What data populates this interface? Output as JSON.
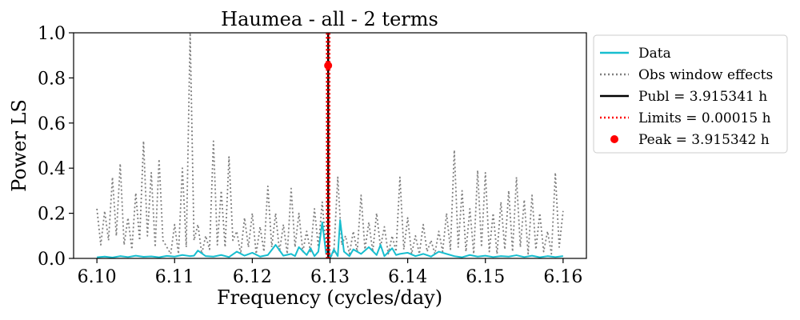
{
  "chart_data": {
    "type": "line",
    "title": "Haumea - all - 2 terms",
    "xlabel": "Frequency (cycles/day)",
    "ylabel": "Power LS",
    "xlim": [
      6.097,
      6.163
    ],
    "ylim": [
      0.0,
      1.0
    ],
    "xticks": [
      6.1,
      6.11,
      6.12,
      6.13,
      6.14,
      6.15,
      6.16
    ],
    "xtick_labels": [
      "6.10",
      "6.11",
      "6.12",
      "6.13",
      "6.14",
      "6.15",
      "6.16"
    ],
    "yticks": [
      0.0,
      0.2,
      0.4,
      0.6,
      0.8,
      1.0
    ],
    "ytick_labels": [
      "0.0",
      "0.2",
      "0.4",
      "0.6",
      "0.8",
      "1.0"
    ],
    "grid": false,
    "legend_position": "outside-right",
    "series": [
      {
        "name": "Data",
        "style": "solid",
        "color": "#17becf",
        "x": [
          6.1,
          6.101,
          6.102,
          6.103,
          6.104,
          6.105,
          6.106,
          6.107,
          6.108,
          6.109,
          6.11,
          6.111,
          6.112,
          6.1125,
          6.113,
          6.114,
          6.115,
          6.116,
          6.117,
          6.118,
          6.119,
          6.12,
          6.121,
          6.122,
          6.123,
          6.124,
          6.125,
          6.1255,
          6.126,
          6.127,
          6.1275,
          6.128,
          6.1285,
          6.129,
          6.1295,
          6.1298,
          6.13,
          6.1305,
          6.131,
          6.1313,
          6.1318,
          6.1325,
          6.133,
          6.134,
          6.135,
          6.136,
          6.1365,
          6.137,
          6.138,
          6.1385,
          6.139,
          6.14,
          6.141,
          6.142,
          6.143,
          6.144,
          6.145,
          6.146,
          6.147,
          6.148,
          6.149,
          6.15,
          6.151,
          6.152,
          6.153,
          6.154,
          6.155,
          6.156,
          6.157,
          6.158,
          6.159,
          6.16
        ],
        "y": [
          0.005,
          0.008,
          0.004,
          0.01,
          0.006,
          0.012,
          0.007,
          0.009,
          0.005,
          0.011,
          0.008,
          0.015,
          0.01,
          0.012,
          0.035,
          0.01,
          0.008,
          0.015,
          0.006,
          0.03,
          0.012,
          0.025,
          0.008,
          0.015,
          0.06,
          0.012,
          0.02,
          0.01,
          0.05,
          0.015,
          0.045,
          0.01,
          0.03,
          0.16,
          0.02,
          0.06,
          0.0,
          0.04,
          0.01,
          0.17,
          0.03,
          0.01,
          0.04,
          0.02,
          0.05,
          0.015,
          0.06,
          0.01,
          0.045,
          0.015,
          0.02,
          0.025,
          0.01,
          0.02,
          0.008,
          0.03,
          0.02,
          0.01,
          0.005,
          0.015,
          0.008,
          0.012,
          0.006,
          0.01,
          0.008,
          0.014,
          0.006,
          0.012,
          0.005,
          0.01,
          0.006,
          0.01
        ]
      },
      {
        "name": "Obs window effects",
        "style": "dotted",
        "color": "#7f7f7f",
        "x": [
          6.1,
          6.1005,
          6.101,
          6.1015,
          6.102,
          6.1025,
          6.103,
          6.1035,
          6.104,
          6.1045,
          6.105,
          6.1055,
          6.106,
          6.1065,
          6.107,
          6.1075,
          6.108,
          6.1085,
          6.109,
          6.1095,
          6.11,
          6.1105,
          6.111,
          6.1115,
          6.112,
          6.1125,
          6.113,
          6.1135,
          6.114,
          6.1145,
          6.115,
          6.1155,
          6.116,
          6.1165,
          6.117,
          6.1175,
          6.118,
          6.1185,
          6.119,
          6.1195,
          6.12,
          6.1205,
          6.121,
          6.1215,
          6.122,
          6.1225,
          6.123,
          6.1235,
          6.124,
          6.1245,
          6.125,
          6.1255,
          6.126,
          6.1265,
          6.127,
          6.1275,
          6.128,
          6.1285,
          6.129,
          6.1295,
          6.13,
          6.1305,
          6.131,
          6.1315,
          6.132,
          6.1325,
          6.133,
          6.1335,
          6.134,
          6.1345,
          6.135,
          6.1355,
          6.136,
          6.1365,
          6.137,
          6.1375,
          6.138,
          6.1385,
          6.139,
          6.1395,
          6.14,
          6.1405,
          6.141,
          6.1415,
          6.142,
          6.1425,
          6.143,
          6.1435,
          6.144,
          6.1445,
          6.145,
          6.1455,
          6.146,
          6.1465,
          6.147,
          6.1475,
          6.148,
          6.1485,
          6.149,
          6.1495,
          6.15,
          6.1505,
          6.151,
          6.1515,
          6.152,
          6.1525,
          6.153,
          6.1535,
          6.154,
          6.1545,
          6.155,
          6.1555,
          6.156,
          6.1565,
          6.157,
          6.1575,
          6.158,
          6.1585,
          6.159,
          6.1595,
          6.16
        ],
        "y": [
          0.22,
          0.06,
          0.21,
          0.08,
          0.36,
          0.1,
          0.42,
          0.06,
          0.18,
          0.04,
          0.29,
          0.08,
          0.52,
          0.1,
          0.38,
          0.05,
          0.44,
          0.08,
          0.05,
          0.02,
          0.15,
          0.02,
          0.4,
          0.05,
          1.0,
          0.08,
          0.15,
          0.02,
          0.1,
          0.04,
          0.52,
          0.06,
          0.3,
          0.05,
          0.45,
          0.08,
          0.12,
          0.02,
          0.18,
          0.05,
          0.2,
          0.02,
          0.14,
          0.03,
          0.32,
          0.05,
          0.2,
          0.03,
          0.15,
          0.02,
          0.31,
          0.05,
          0.2,
          0.03,
          0.12,
          0.03,
          0.22,
          0.05,
          0.25,
          0.04,
          0.0,
          0.03,
          0.36,
          0.06,
          0.1,
          0.02,
          0.12,
          0.03,
          0.28,
          0.04,
          0.16,
          0.03,
          0.2,
          0.05,
          0.14,
          0.02,
          0.1,
          0.03,
          0.36,
          0.04,
          0.18,
          0.02,
          0.1,
          0.02,
          0.15,
          0.03,
          0.08,
          0.02,
          0.12,
          0.03,
          0.2,
          0.04,
          0.48,
          0.05,
          0.3,
          0.03,
          0.22,
          0.02,
          0.39,
          0.05,
          0.38,
          0.03,
          0.2,
          0.02,
          0.25,
          0.04,
          0.3,
          0.03,
          0.36,
          0.05,
          0.26,
          0.02,
          0.28,
          0.04,
          0.2,
          0.03,
          0.12,
          0.02,
          0.38,
          0.05,
          0.21
        ]
      }
    ],
    "vlines": [
      {
        "name": "Publ = 3.915341 h",
        "x": 6.12976,
        "style": "solid",
        "color": "#000000"
      },
      {
        "name": "Limits = 0.00015 h",
        "x": [
          6.1296,
          6.12992
        ],
        "style": "dotted",
        "color": "#ff0000"
      }
    ],
    "points": [
      {
        "name": "Peak = 3.915342 h",
        "x": 6.12976,
        "y": 0.855,
        "color": "#ff0000"
      }
    ],
    "legend": [
      "Data",
      "Obs window effects",
      "Publ = 3.915341 h",
      "Limits = 0.00015 h",
      "Peak = 3.915342 h"
    ]
  }
}
